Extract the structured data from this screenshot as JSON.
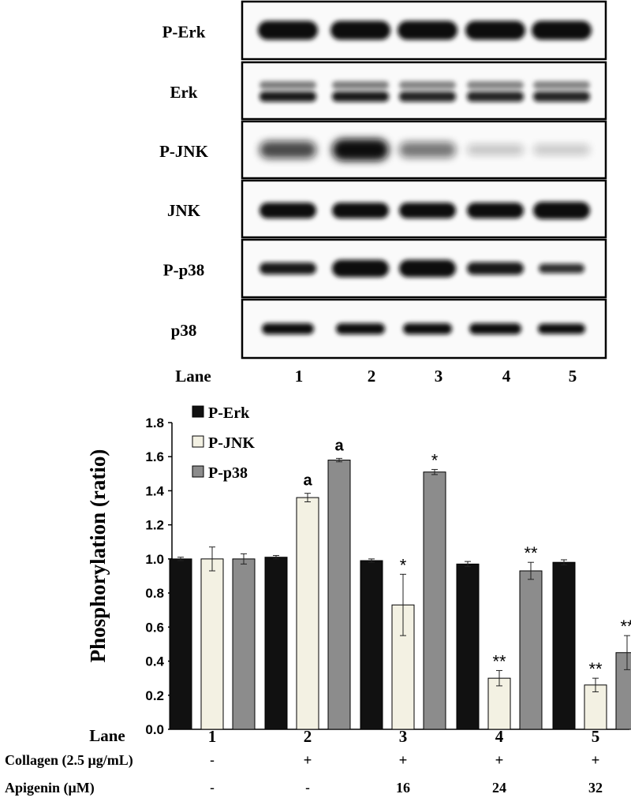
{
  "blot": {
    "rows": [
      {
        "label": "P-Erk",
        "profile": "erk_p"
      },
      {
        "label": "Erk",
        "profile": "erk"
      },
      {
        "label": "P-JNK",
        "profile": "jnk_p"
      },
      {
        "label": "JNK",
        "profile": "jnk"
      },
      {
        "label": "P-p38",
        "profile": "p38_p"
      },
      {
        "label": "p38",
        "profile": "p38"
      }
    ],
    "lane_title": "Lane",
    "lanes": [
      "1",
      "2",
      "3",
      "4",
      "5"
    ]
  },
  "chart_data": {
    "type": "bar",
    "title": "",
    "xlabel": "",
    "ylabel": "Phosphorylation (ratio)",
    "ylim": [
      0,
      1.8
    ],
    "yticks": [
      "0.0",
      "0.2",
      "0.4",
      "0.6",
      "0.8",
      "1.0",
      "1.2",
      "1.4",
      "1.6",
      "1.8"
    ],
    "categories": [
      "1",
      "2",
      "3",
      "4",
      "5"
    ],
    "series": [
      {
        "name": "P-Erk",
        "color": "#111111",
        "values": [
          1.0,
          1.01,
          0.99,
          0.97,
          0.98
        ],
        "errors": [
          0.01,
          0.01,
          0.01,
          0.015,
          0.015
        ],
        "annotations": [
          "",
          "",
          "",
          "",
          ""
        ]
      },
      {
        "name": "P-JNK",
        "color": "#f3f1e3",
        "values": [
          1.0,
          1.36,
          0.73,
          0.3,
          0.26
        ],
        "errors": [
          0.07,
          0.025,
          0.18,
          0.045,
          0.04
        ],
        "annotations": [
          "",
          "a",
          "*",
          "**",
          "**"
        ]
      },
      {
        "name": "P-p38",
        "color": "#8c8c8c",
        "values": [
          1.0,
          1.58,
          1.51,
          0.93,
          0.45
        ],
        "errors": [
          0.03,
          0.01,
          0.015,
          0.05,
          0.1
        ],
        "annotations": [
          "",
          "a",
          "*",
          "**",
          "**"
        ]
      }
    ],
    "legend_position": "top-left",
    "grid": false
  },
  "treatments": {
    "lane_title": "Lane",
    "rows": [
      {
        "label": "Collagen  (2.5 μg/mL)",
        "values": [
          "-",
          "+",
          "+",
          "+",
          "+"
        ]
      },
      {
        "label": "Apigenin (μM)",
        "values": [
          "-",
          "-",
          "16",
          "24",
          "32"
        ]
      }
    ]
  }
}
